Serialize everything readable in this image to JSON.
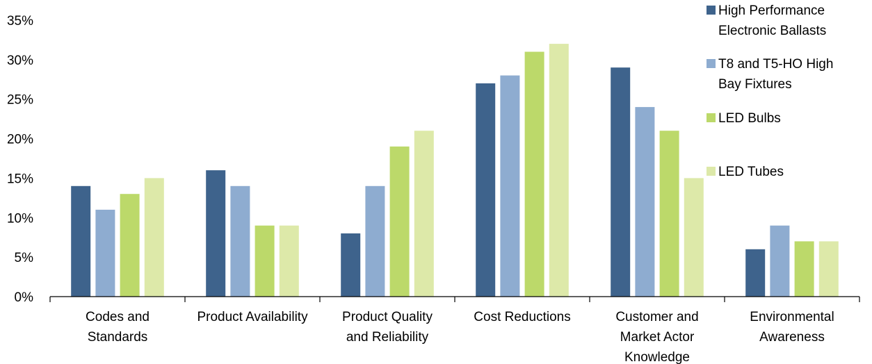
{
  "chart_data": {
    "type": "bar",
    "title": "",
    "xlabel": "",
    "ylabel": "",
    "ylim": [
      0,
      0.35
    ],
    "yticks": [
      0,
      0.05,
      0.1,
      0.15,
      0.2,
      0.25,
      0.3,
      0.35
    ],
    "ytick_labels": [
      "0%",
      "5%",
      "10%",
      "15%",
      "20%",
      "25%",
      "30%",
      "35%"
    ],
    "grid": false,
    "legend_position": "top-right",
    "categories": [
      [
        "Codes and",
        "Standards"
      ],
      [
        "Product Availability"
      ],
      [
        "Product Quality",
        "and Reliability"
      ],
      [
        "Cost Reductions"
      ],
      [
        "Customer and",
        "Market Actor",
        "Knowledge"
      ],
      [
        "Environmental",
        "Awareness"
      ]
    ],
    "series": [
      {
        "name": [
          "High Performance",
          "Electronic Ballasts"
        ],
        "color": "#3e638c",
        "values": [
          0.14,
          0.16,
          0.08,
          0.27,
          0.29,
          0.06
        ]
      },
      {
        "name": [
          "T8 and T5-HO High",
          "Bay Fixtures"
        ],
        "color": "#8eacd0",
        "values": [
          0.11,
          0.14,
          0.14,
          0.28,
          0.24,
          0.09
        ]
      },
      {
        "name": [
          "LED Bulbs"
        ],
        "color": "#bcd96a",
        "values": [
          0.13,
          0.09,
          0.19,
          0.31,
          0.21,
          0.07
        ]
      },
      {
        "name": [
          "LED Tubes"
        ],
        "color": "#dde9a9",
        "values": [
          0.15,
          0.09,
          0.21,
          0.32,
          0.15,
          0.07
        ]
      }
    ]
  }
}
